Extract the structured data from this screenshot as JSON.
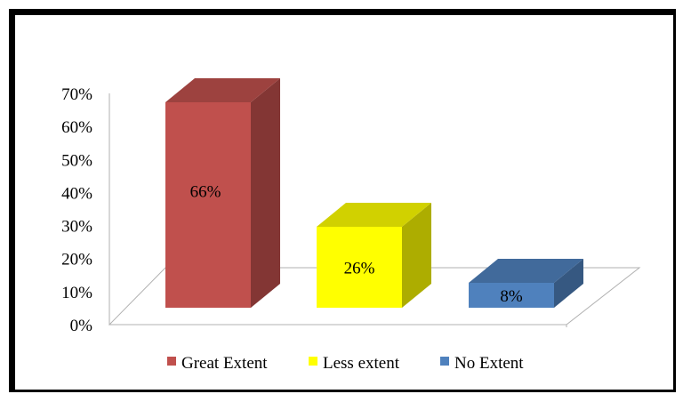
{
  "chart_data": {
    "type": "bar",
    "categories": [
      "Great Extent",
      "Less extent",
      "No Extent"
    ],
    "values": [
      66,
      26,
      8
    ],
    "value_labels": [
      "66%",
      "26%",
      "8%"
    ],
    "colors": [
      "#c0504d",
      "#ffff00",
      "#4f81bd"
    ],
    "ylim": [
      0,
      70
    ],
    "ytick_values": [
      0,
      10,
      20,
      30,
      40,
      50,
      60,
      70
    ],
    "ytick_labels": [
      "0%",
      "10%",
      "20%",
      "30%",
      "40%",
      "50%",
      "60%",
      "70%"
    ],
    "title": "",
    "xlabel": "",
    "ylabel": "",
    "legend_position": "bottom",
    "style": "3d-columns"
  }
}
